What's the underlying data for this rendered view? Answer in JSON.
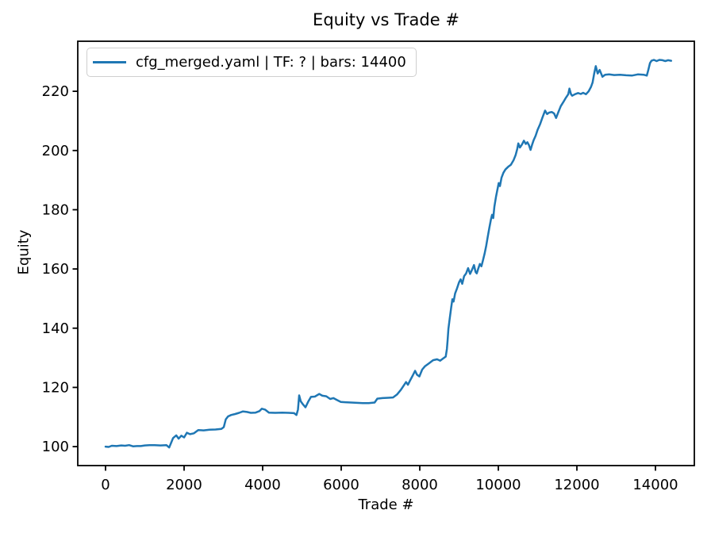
{
  "figure": {
    "background": "#ffffff",
    "axis_color": "#000000"
  },
  "chart_data": {
    "type": "line",
    "title": "Equity vs Trade #",
    "xlabel": "Trade #",
    "ylabel": "Equity",
    "x_ticks": [
      0,
      2000,
      4000,
      6000,
      8000,
      10000,
      12000,
      14000
    ],
    "y_ticks": [
      100,
      120,
      140,
      160,
      180,
      200,
      220
    ],
    "xlim": [
      -707,
      14990
    ],
    "ylim": [
      93.6,
      236.9
    ],
    "grid": false,
    "legend": {
      "position": "upper-left",
      "entries": [
        "cfg_merged.yaml | TF: ? | bars: 14400"
      ]
    },
    "series": [
      {
        "name": "cfg_merged.yaml | TF: ? | bars: 14400",
        "color": "#1f77b4",
        "points": [
          [
            0,
            100.0
          ],
          [
            80,
            99.9
          ],
          [
            160,
            100.3
          ],
          [
            280,
            100.2
          ],
          [
            400,
            100.4
          ],
          [
            500,
            100.3
          ],
          [
            600,
            100.5
          ],
          [
            700,
            100.1
          ],
          [
            800,
            100.2
          ],
          [
            900,
            100.2
          ],
          [
            1000,
            100.4
          ],
          [
            1120,
            100.5
          ],
          [
            1250,
            100.5
          ],
          [
            1400,
            100.4
          ],
          [
            1550,
            100.5
          ],
          [
            1620,
            99.7
          ],
          [
            1660,
            101.0
          ],
          [
            1720,
            102.9
          ],
          [
            1800,
            103.8
          ],
          [
            1860,
            102.7
          ],
          [
            1930,
            103.7
          ],
          [
            2000,
            103.1
          ],
          [
            2070,
            104.7
          ],
          [
            2150,
            104.2
          ],
          [
            2250,
            104.5
          ],
          [
            2360,
            105.6
          ],
          [
            2500,
            105.5
          ],
          [
            2650,
            105.7
          ],
          [
            2800,
            105.8
          ],
          [
            2950,
            106.0
          ],
          [
            3010,
            106.6
          ],
          [
            3060,
            109.2
          ],
          [
            3120,
            110.2
          ],
          [
            3200,
            110.7
          ],
          [
            3300,
            111.0
          ],
          [
            3400,
            111.4
          ],
          [
            3500,
            111.9
          ],
          [
            3600,
            111.7
          ],
          [
            3700,
            111.4
          ],
          [
            3820,
            111.5
          ],
          [
            3920,
            112.0
          ],
          [
            3980,
            112.8
          ],
          [
            4060,
            112.5
          ],
          [
            4160,
            111.5
          ],
          [
            4320,
            111.4
          ],
          [
            4500,
            111.5
          ],
          [
            4660,
            111.4
          ],
          [
            4800,
            111.3
          ],
          [
            4860,
            110.7
          ],
          [
            4900,
            112.5
          ],
          [
            4930,
            117.3
          ],
          [
            4970,
            115.3
          ],
          [
            5030,
            114.2
          ],
          [
            5090,
            113.3
          ],
          [
            5160,
            115.2
          ],
          [
            5230,
            116.8
          ],
          [
            5330,
            116.9
          ],
          [
            5440,
            117.8
          ],
          [
            5520,
            117.2
          ],
          [
            5620,
            117.0
          ],
          [
            5720,
            116.1
          ],
          [
            5800,
            116.4
          ],
          [
            5900,
            115.7
          ],
          [
            5990,
            115.1
          ],
          [
            6100,
            115.0
          ],
          [
            6250,
            114.9
          ],
          [
            6400,
            114.8
          ],
          [
            6550,
            114.7
          ],
          [
            6700,
            114.7
          ],
          [
            6850,
            114.9
          ],
          [
            6920,
            116.2
          ],
          [
            7050,
            116.4
          ],
          [
            7200,
            116.5
          ],
          [
            7320,
            116.6
          ],
          [
            7420,
            117.6
          ],
          [
            7520,
            119.2
          ],
          [
            7580,
            120.4
          ],
          [
            7650,
            121.8
          ],
          [
            7700,
            120.9
          ],
          [
            7760,
            122.5
          ],
          [
            7820,
            124.0
          ],
          [
            7880,
            125.6
          ],
          [
            7930,
            124.3
          ],
          [
            7990,
            123.7
          ],
          [
            8060,
            126.0
          ],
          [
            8130,
            127.1
          ],
          [
            8230,
            128.1
          ],
          [
            8340,
            129.2
          ],
          [
            8440,
            129.5
          ],
          [
            8520,
            129.0
          ],
          [
            8600,
            129.8
          ],
          [
            8660,
            130.4
          ],
          [
            8690,
            133.0
          ],
          [
            8710,
            136.0
          ],
          [
            8730,
            139.8
          ],
          [
            8760,
            143.0
          ],
          [
            8800,
            147.0
          ],
          [
            8830,
            149.8
          ],
          [
            8860,
            149.0
          ],
          [
            8900,
            151.7
          ],
          [
            8950,
            153.5
          ],
          [
            9000,
            155.5
          ],
          [
            9040,
            156.5
          ],
          [
            9080,
            155.0
          ],
          [
            9130,
            157.6
          ],
          [
            9180,
            158.5
          ],
          [
            9230,
            160.3
          ],
          [
            9280,
            158.3
          ],
          [
            9330,
            159.7
          ],
          [
            9380,
            161.3
          ],
          [
            9420,
            159.0
          ],
          [
            9450,
            158.5
          ],
          [
            9490,
            160.2
          ],
          [
            9530,
            161.7
          ],
          [
            9570,
            160.9
          ],
          [
            9610,
            163.0
          ],
          [
            9650,
            165.2
          ],
          [
            9690,
            167.8
          ],
          [
            9730,
            170.8
          ],
          [
            9770,
            173.8
          ],
          [
            9810,
            176.6
          ],
          [
            9840,
            178.3
          ],
          [
            9870,
            177.2
          ],
          [
            9900,
            181.0
          ],
          [
            9940,
            184.3
          ],
          [
            9980,
            187.0
          ],
          [
            10010,
            189.0
          ],
          [
            10040,
            188.0
          ],
          [
            10080,
            190.8
          ],
          [
            10130,
            192.5
          ],
          [
            10180,
            193.6
          ],
          [
            10250,
            194.5
          ],
          [
            10320,
            195.2
          ],
          [
            10390,
            196.8
          ],
          [
            10440,
            198.5
          ],
          [
            10480,
            200.5
          ],
          [
            10510,
            202.4
          ],
          [
            10550,
            201.0
          ],
          [
            10600,
            202.0
          ],
          [
            10650,
            203.3
          ],
          [
            10700,
            202.2
          ],
          [
            10740,
            202.8
          ],
          [
            10780,
            201.8
          ],
          [
            10820,
            200.2
          ],
          [
            10860,
            202.0
          ],
          [
            10900,
            203.5
          ],
          [
            10950,
            205.0
          ],
          [
            11000,
            207.0
          ],
          [
            11060,
            208.8
          ],
          [
            11120,
            211.0
          ],
          [
            11190,
            213.5
          ],
          [
            11240,
            212.3
          ],
          [
            11290,
            212.8
          ],
          [
            11360,
            213.0
          ],
          [
            11420,
            212.5
          ],
          [
            11470,
            211.0
          ],
          [
            11530,
            213.0
          ],
          [
            11590,
            215.0
          ],
          [
            11660,
            216.5
          ],
          [
            11720,
            217.8
          ],
          [
            11780,
            219.0
          ],
          [
            11810,
            220.9
          ],
          [
            11850,
            219.0
          ],
          [
            11880,
            218.5
          ],
          [
            11950,
            219.0
          ],
          [
            12030,
            219.4
          ],
          [
            12100,
            219.1
          ],
          [
            12160,
            219.5
          ],
          [
            12230,
            219.0
          ],
          [
            12300,
            220.0
          ],
          [
            12360,
            221.5
          ],
          [
            12400,
            223.0
          ],
          [
            12440,
            226.0
          ],
          [
            12480,
            228.5
          ],
          [
            12530,
            226.0
          ],
          [
            12580,
            227.2
          ],
          [
            12650,
            224.9
          ],
          [
            12720,
            225.6
          ],
          [
            12820,
            225.7
          ],
          [
            12950,
            225.5
          ],
          [
            13100,
            225.6
          ],
          [
            13250,
            225.4
          ],
          [
            13400,
            225.3
          ],
          [
            13550,
            225.7
          ],
          [
            13700,
            225.6
          ],
          [
            13780,
            225.3
          ],
          [
            13820,
            227.3
          ],
          [
            13860,
            229.5
          ],
          [
            13900,
            230.3
          ],
          [
            13960,
            230.6
          ],
          [
            14030,
            230.2
          ],
          [
            14100,
            230.6
          ],
          [
            14180,
            230.5
          ],
          [
            14250,
            230.2
          ],
          [
            14320,
            230.5
          ],
          [
            14400,
            230.3
          ]
        ]
      }
    ]
  }
}
